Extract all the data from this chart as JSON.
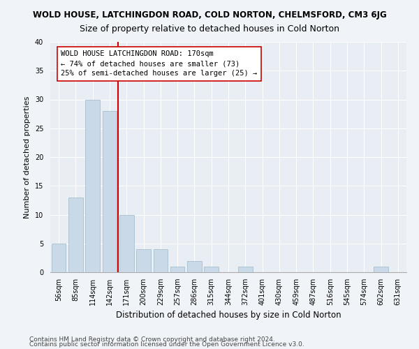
{
  "title": "WOLD HOUSE, LATCHINGDON ROAD, COLD NORTON, CHELMSFORD, CM3 6JG",
  "subtitle": "Size of property relative to detached houses in Cold Norton",
  "xlabel": "Distribution of detached houses by size in Cold Norton",
  "ylabel": "Number of detached properties",
  "categories": [
    "56sqm",
    "85sqm",
    "114sqm",
    "142sqm",
    "171sqm",
    "200sqm",
    "229sqm",
    "257sqm",
    "286sqm",
    "315sqm",
    "344sqm",
    "372sqm",
    "401sqm",
    "430sqm",
    "459sqm",
    "487sqm",
    "516sqm",
    "545sqm",
    "574sqm",
    "602sqm",
    "631sqm"
  ],
  "values": [
    5,
    13,
    30,
    28,
    10,
    4,
    4,
    1,
    2,
    1,
    0,
    1,
    0,
    0,
    0,
    0,
    0,
    0,
    0,
    1,
    0
  ],
  "bar_color": "#c9d9e8",
  "bar_edge_color": "#a8bfcf",
  "vline_color": "#cc0000",
  "annotation_text": "WOLD HOUSE LATCHINGDON ROAD: 170sqm\n← 74% of detached houses are smaller (73)\n25% of semi-detached houses are larger (25) →",
  "annotation_box_color": "#ffffff",
  "annotation_box_edge": "#cc0000",
  "ylim": [
    0,
    40
  ],
  "yticks": [
    0,
    5,
    10,
    15,
    20,
    25,
    30,
    35,
    40
  ],
  "footer1": "Contains HM Land Registry data © Crown copyright and database right 2024.",
  "footer2": "Contains public sector information licensed under the Open Government Licence v3.0.",
  "bg_color": "#f0f4f8",
  "plot_bg_color": "#e8eef4",
  "grid_color": "#ffffff",
  "title_fontsize": 8.5,
  "subtitle_fontsize": 9,
  "ylabel_fontsize": 8,
  "xlabel_fontsize": 8.5,
  "tick_fontsize": 7,
  "annotation_fontsize": 7.5,
  "footer_fontsize": 6.5
}
